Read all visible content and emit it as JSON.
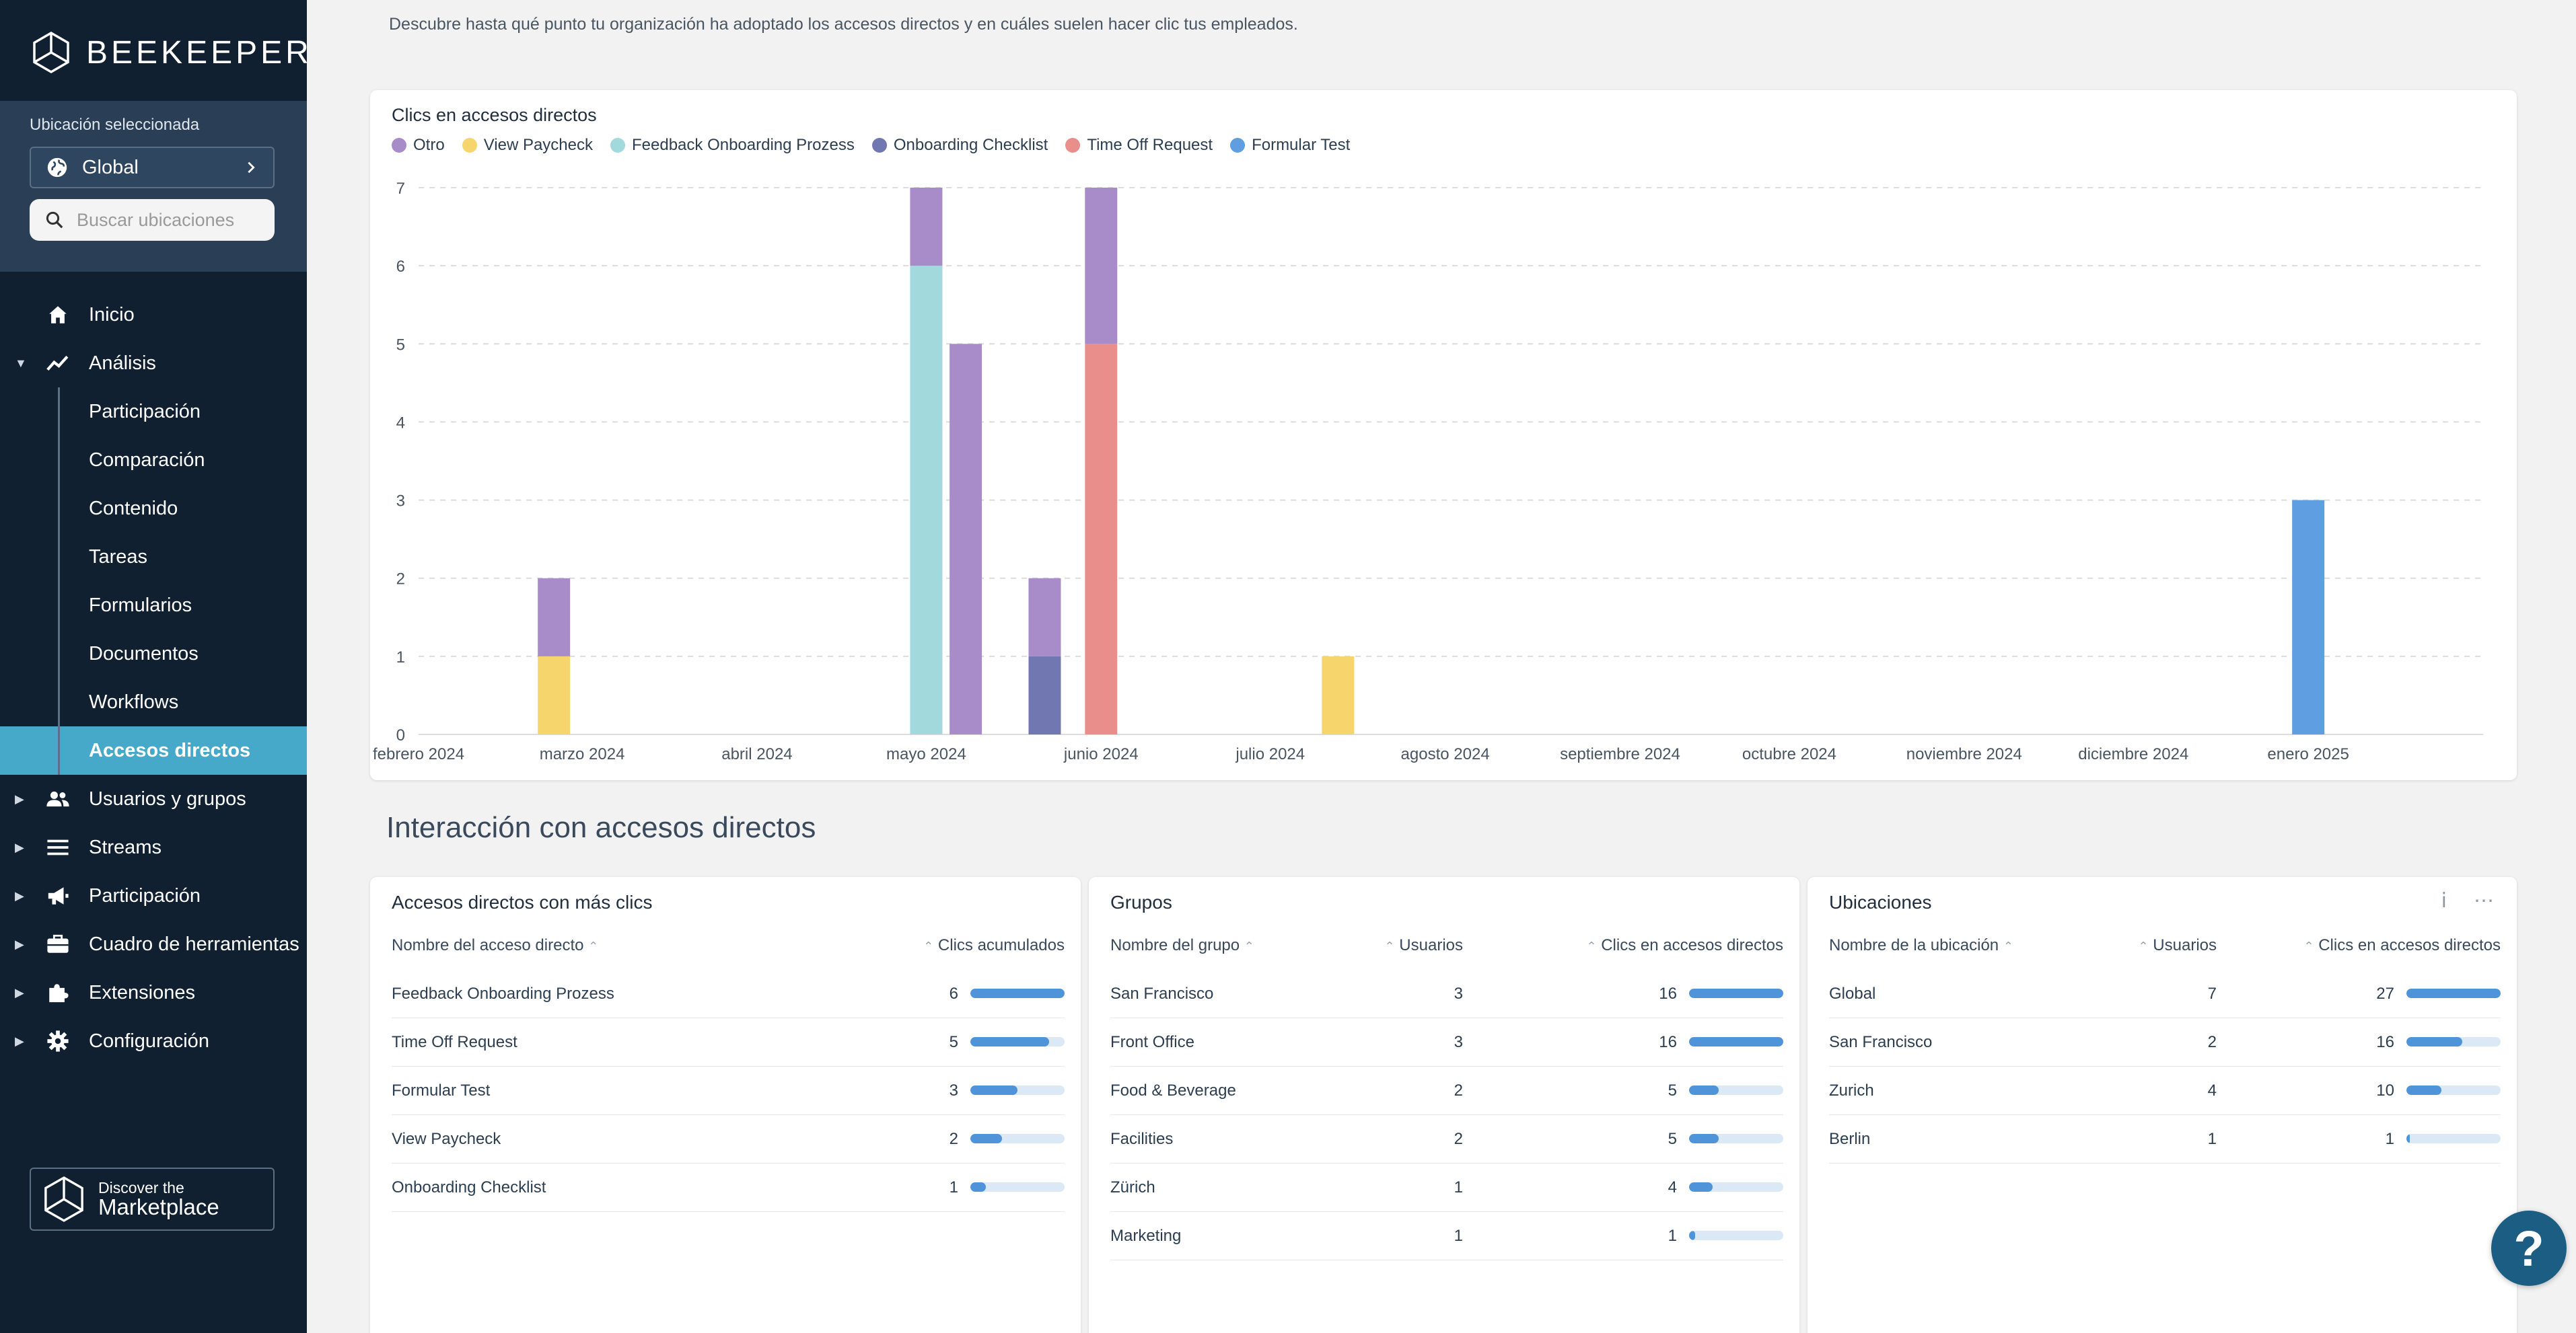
{
  "app": {
    "brand": "BEEKEEPER",
    "description": "Descubre hasta qué punto tu organización ha adoptado los accesos directos y en cuáles suelen hacer clic tus empleados."
  },
  "location": {
    "label": "Ubicación seleccionada",
    "selected": "Global",
    "search_placeholder": "Buscar ubicaciones"
  },
  "nav": {
    "inicio": "Inicio",
    "analisis": "Análisis",
    "sub": [
      "Participación",
      "Comparación",
      "Contenido",
      "Tareas",
      "Formularios",
      "Documentos",
      "Workflows",
      "Accesos directos"
    ],
    "usuarios": "Usuarios y grupos",
    "streams": "Streams",
    "participacion": "Participación",
    "cuadro": "Cuadro de herramientas",
    "extensiones": "Extensiones",
    "configuracion": "Configuración"
  },
  "marketplace": {
    "line1": "Discover the",
    "line2": "Marketplace"
  },
  "chart_data": {
    "type": "bar",
    "stacked": true,
    "title": "Clics en accesos directos",
    "legend_position": "top-left",
    "grid": true,
    "ylim": [
      0,
      7
    ],
    "yticks": [
      0,
      1,
      2,
      3,
      4,
      5,
      6,
      7
    ],
    "xticks": [
      "febrero 2024",
      "marzo 2024",
      "abril 2024",
      "mayo 2024",
      "junio 2024",
      "julio 2024",
      "agosto 2024",
      "septiembre 2024",
      "octubre 2024",
      "noviembre 2024",
      "diciembre 2024",
      "enero 2025"
    ],
    "series": [
      {
        "name": "Otro",
        "color": "#a88bc9"
      },
      {
        "name": "View Paycheck",
        "color": "#f6d56c"
      },
      {
        "name": "Feedback Onboarding Prozess",
        "color": "#a2d9dc"
      },
      {
        "name": "Onboarding Checklist",
        "color": "#7177b1"
      },
      {
        "name": "Time Off Request",
        "color": "#ea8e8c"
      },
      {
        "name": "Formular Test",
        "color": "#5f9ee0"
      }
    ],
    "bars": [
      {
        "date": "2024-02-25",
        "stack": [
          {
            "series": "View Paycheck",
            "value": 1
          },
          {
            "series": "Otro",
            "value": 1
          }
        ]
      },
      {
        "date": "2024-05-01",
        "stack": [
          {
            "series": "Feedback Onboarding Prozess",
            "value": 6
          },
          {
            "series": "Otro",
            "value": 1
          }
        ]
      },
      {
        "date": "2024-05-08",
        "stack": [
          {
            "series": "Otro",
            "value": 5
          }
        ]
      },
      {
        "date": "2024-05-22",
        "stack": [
          {
            "series": "Onboarding Checklist",
            "value": 1
          },
          {
            "series": "Otro",
            "value": 1
          }
        ]
      },
      {
        "date": "2024-06-01",
        "stack": [
          {
            "series": "Time Off Request",
            "value": 5
          },
          {
            "series": "Otro",
            "value": 2
          }
        ]
      },
      {
        "date": "2024-07-13",
        "stack": [
          {
            "series": "View Paycheck",
            "value": 1
          }
        ]
      },
      {
        "date": "2025-01-01",
        "stack": [
          {
            "series": "Formular Test",
            "value": 3
          }
        ]
      }
    ]
  },
  "section_title": "Interacción con accesos directos",
  "shortcuts_table": {
    "title": "Accesos directos con más clics",
    "col_name": "Nombre del acceso directo",
    "col_clicks": "Clics acumulados",
    "max": 6,
    "rows": [
      {
        "name": "Feedback Onboarding Prozess",
        "clicks": 6
      },
      {
        "name": "Time Off Request",
        "clicks": 5
      },
      {
        "name": "Formular Test",
        "clicks": 3
      },
      {
        "name": "View Paycheck",
        "clicks": 2
      },
      {
        "name": "Onboarding Checklist",
        "clicks": 1
      }
    ]
  },
  "groups_table": {
    "title": "Grupos",
    "col_name": "Nombre del grupo",
    "col_users": "Usuarios",
    "col_clicks": "Clics en accesos directos",
    "max": 16,
    "rows": [
      {
        "name": "San Francisco",
        "users": 3,
        "clicks": 16
      },
      {
        "name": "Front Office",
        "users": 3,
        "clicks": 16
      },
      {
        "name": "Food & Beverage",
        "users": 2,
        "clicks": 5
      },
      {
        "name": "Facilities",
        "users": 2,
        "clicks": 5
      },
      {
        "name": "Zürich",
        "users": 1,
        "clicks": 4
      },
      {
        "name": "Marketing",
        "users": 1,
        "clicks": 1
      }
    ]
  },
  "locations_table": {
    "title": "Ubicaciones",
    "col_name": "Nombre de la ubicación",
    "col_users": "Usuarios",
    "col_clicks": "Clics en accesos directos",
    "max": 27,
    "rows": [
      {
        "name": "Global",
        "users": 7,
        "clicks": 27
      },
      {
        "name": "San Francisco",
        "users": 2,
        "clicks": 16
      },
      {
        "name": "Zurich",
        "users": 4,
        "clicks": 10
      },
      {
        "name": "Berlin",
        "users": 1,
        "clicks": 1
      }
    ]
  },
  "help": {
    "label": "?"
  }
}
